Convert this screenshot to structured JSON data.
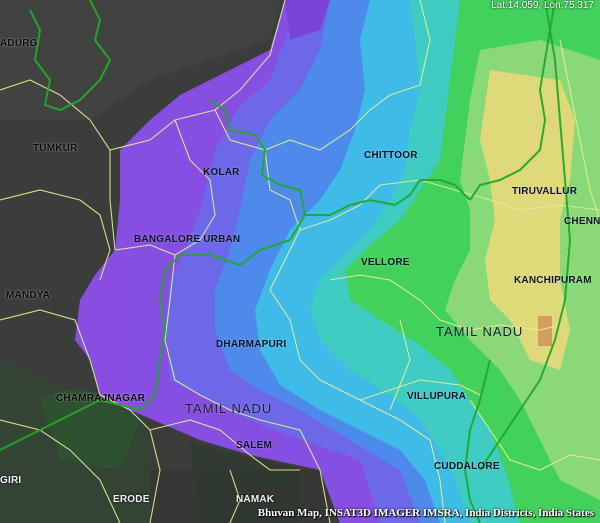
{
  "coordinates_readout": "Lat:14.059, Lon:75.317",
  "credit": "Bhuvan Map, INSAT3D IMAGER IMSRA, India Districts, India States",
  "colors": {
    "background": "#3b3d3b",
    "purple": "#8a4fe8",
    "blue_purple": "#6e6af0",
    "blue": "#4f8ef2",
    "cyan": "#3fc2ee",
    "teal": "#3fd2c9",
    "green": "#43d85f",
    "light_green": "#8ee07c",
    "yellow": "#e6e07d",
    "orange": "#dca062",
    "district_boundary": "#e7ef96",
    "state_boundary": "#22a82a"
  },
  "labels": [
    {
      "id": "adurga",
      "text": "ADURG"
    },
    {
      "id": "chittoor",
      "text": "CHITTOOR"
    },
    {
      "id": "tumkur",
      "text": "TUMKUR"
    },
    {
      "id": "kolar",
      "text": "KOLAR"
    },
    {
      "id": "tiruvallur",
      "text": "TIRUVALLUR"
    },
    {
      "id": "chennai",
      "text": "CHENN"
    },
    {
      "id": "bangalore_urban",
      "text": "BANGALORE URBAN"
    },
    {
      "id": "vellore",
      "text": "VELLORE"
    },
    {
      "id": "kanchipuram",
      "text": "KANCHIPURAM"
    },
    {
      "id": "mandya",
      "text": "MANDYA"
    },
    {
      "id": "tamil_nadu_east",
      "text": "TAMIL NADU"
    },
    {
      "id": "dharmapuri",
      "text": "DHARMAPURI"
    },
    {
      "id": "chamrajnagar",
      "text": "CHAMRAJNAGAR"
    },
    {
      "id": "villupuram",
      "text": "VILLUPURA"
    },
    {
      "id": "tamil_nadu_west",
      "text": "TAMIL NADU"
    },
    {
      "id": "salem",
      "text": "SALEM"
    },
    {
      "id": "cuddalore",
      "text": "CUDDALORE"
    },
    {
      "id": "nilgiri",
      "text": "GIRI"
    },
    {
      "id": "erode",
      "text": "ERODE"
    },
    {
      "id": "namakkal",
      "text": "NAMAK"
    }
  ]
}
